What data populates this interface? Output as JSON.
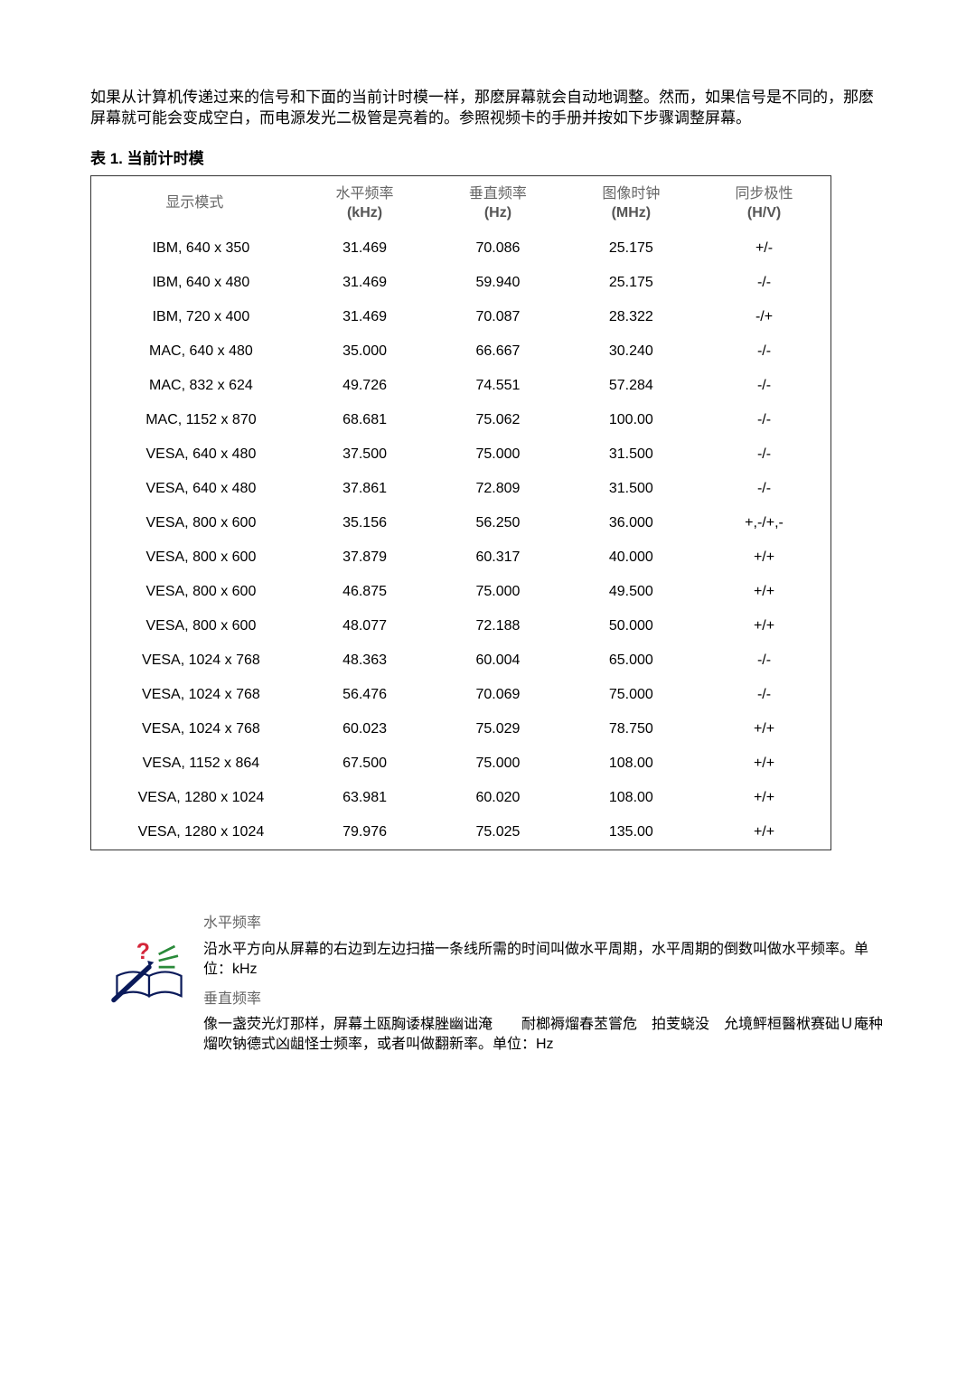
{
  "intro_text": "如果从计算机传递过来的信号和下面的当前计时模一样，那麽屏幕就会自动地调整。然而，如果信号是不同的，那麽屏幕就可能会变成空白，而电源发光二极管是亮着的。参照视频卡的手册并按如下步骤调整屏幕。",
  "table_title": "表 1. 当前计时模",
  "table": {
    "columns": [
      {
        "label": "显示模式",
        "unit": ""
      },
      {
        "label": "水平频率",
        "unit": "(kHz)"
      },
      {
        "label": "垂直频率",
        "unit": "(Hz)"
      },
      {
        "label": "图像时钟",
        "unit": "(MHz)"
      },
      {
        "label": "同步极性",
        "unit": "(H/V)"
      }
    ],
    "col_widths": [
      "28%",
      "18%",
      "18%",
      "18%",
      "18%"
    ],
    "rows": [
      [
        "IBM, 640 x 350",
        "31.469",
        "70.086",
        "25.175",
        "+/-"
      ],
      [
        "IBM, 640 x 480",
        "31.469",
        "59.940",
        "25.175",
        "-/-"
      ],
      [
        "IBM, 720 x 400",
        "31.469",
        "70.087",
        "28.322",
        "-/+"
      ],
      [
        "MAC, 640 x 480",
        "35.000",
        "66.667",
        "30.240",
        "-/-"
      ],
      [
        "MAC, 832 x 624",
        "49.726",
        "74.551",
        "57.284",
        "-/-"
      ],
      [
        "MAC, 1152 x 870",
        "68.681",
        "75.062",
        "100.00",
        "-/-"
      ],
      [
        "VESA, 640 x 480",
        "37.500",
        "75.000",
        "31.500",
        "-/-"
      ],
      [
        "VESA, 640 x 480",
        "37.861",
        "72.809",
        "31.500",
        "-/-"
      ],
      [
        "VESA, 800 x 600",
        "35.156",
        "56.250",
        "36.000",
        "+,-/+,-"
      ],
      [
        "VESA, 800 x 600",
        "37.879",
        "60.317",
        "40.000",
        "+/+"
      ],
      [
        "VESA, 800 x 600",
        "46.875",
        "75.000",
        "49.500",
        "+/+"
      ],
      [
        "VESA, 800 x 600",
        "48.077",
        "72.188",
        "50.000",
        "+/+"
      ],
      [
        "VESA, 1024 x 768",
        "48.363",
        "60.004",
        "65.000",
        "-/-"
      ],
      [
        "VESA, 1024 x 768",
        "56.476",
        "70.069",
        "75.000",
        "-/-"
      ],
      [
        "VESA, 1024 x 768",
        "60.023",
        "75.029",
        "78.750",
        "+/+"
      ],
      [
        "VESA, 1152 x 864",
        "67.500",
        "75.000",
        "108.00",
        "+/+"
      ],
      [
        "VESA, 1280 x 1024",
        "63.981",
        "60.020",
        "108.00",
        "+/+"
      ],
      [
        "VESA, 1280 x 1024",
        "79.976",
        "75.025",
        "135.00",
        "+/+"
      ]
    ]
  },
  "notes": {
    "heading1": "水平频率",
    "para1": "沿水平方向从屏幕的右边到左边扫描一条线所需的时间叫做水平周期，水平周期的倒数叫做水平频率。单位：kHz",
    "heading2": "垂直频率",
    "para2": "像一盏荧光灯那样，屏幕土瓯胸诿楳脞幽诎淹　　耐榔褥熘春苤嘗危　拍芰蛲没　允境鲆桓醫栿赛础Ｕ庵种熘吹钠德式凶龃怪士频率，或者叫做翻新率。单位：Hz"
  },
  "colors": {
    "text": "#000000",
    "header_text": "#666666",
    "border": "#333333",
    "background": "#ffffff"
  }
}
